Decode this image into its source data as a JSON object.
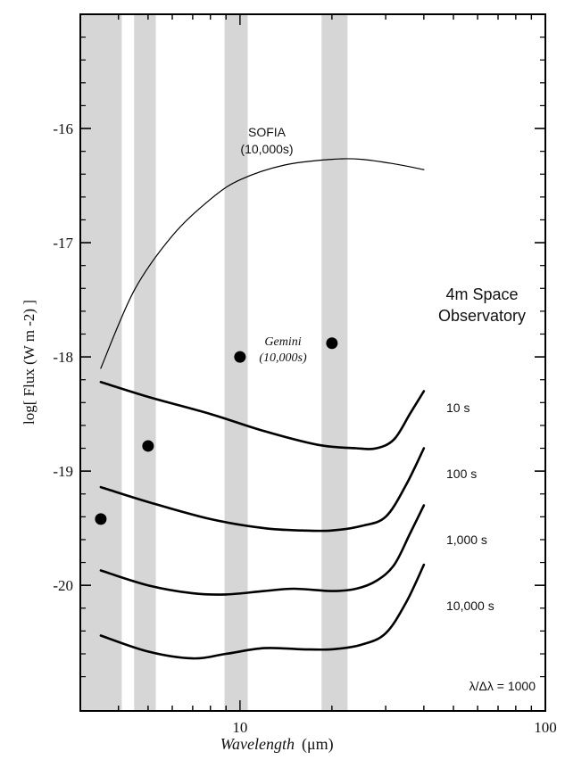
{
  "chart_data": {
    "type": "line",
    "title": "",
    "xlabel": "Wavelength",
    "xlabel_unit": "(μm)",
    "ylabel": "log[ Flux (W m -2) ]",
    "xscale": "log",
    "xlim": [
      3,
      100
    ],
    "ylim": [
      -21.1,
      -15
    ],
    "x_ticks": [
      10,
      100
    ],
    "y_ticks": [
      -16,
      -17,
      -18,
      -19,
      -20
    ],
    "shaded_bands": [
      [
        3.0,
        4.1
      ],
      [
        4.5,
        5.3
      ],
      [
        8.9,
        10.6
      ],
      [
        18.5,
        22.5
      ]
    ],
    "series": [
      {
        "name": "SOFIA",
        "label_lines": [
          "SOFIA",
          "(10,000s)"
        ],
        "style": "thin",
        "x": [
          3.5,
          4.5,
          6,
          8,
          10,
          14,
          20,
          25,
          32,
          40
        ],
        "y": [
          -18.1,
          -17.42,
          -16.94,
          -16.62,
          -16.45,
          -16.32,
          -16.27,
          -16.27,
          -16.31,
          -16.36
        ]
      },
      {
        "name": "10 s",
        "style": "thick",
        "x": [
          3.5,
          5,
          8,
          12,
          18,
          24,
          28,
          32,
          36,
          40
        ],
        "y": [
          -18.22,
          -18.35,
          -18.5,
          -18.65,
          -18.77,
          -18.8,
          -18.8,
          -18.72,
          -18.5,
          -18.3
        ]
      },
      {
        "name": "100 s",
        "style": "thick",
        "x": [
          3.5,
          5,
          8,
          12,
          16,
          20,
          25,
          30,
          35,
          40
        ],
        "y": [
          -19.14,
          -19.27,
          -19.42,
          -19.5,
          -19.52,
          -19.52,
          -19.48,
          -19.4,
          -19.12,
          -18.8
        ]
      },
      {
        "name": "1,000 s",
        "style": "thick",
        "x": [
          3.5,
          5,
          7,
          9,
          12,
          15,
          20,
          24,
          28,
          32,
          36,
          40
        ],
        "y": [
          -19.87,
          -20.0,
          -20.07,
          -20.08,
          -20.05,
          -20.03,
          -20.05,
          -20.03,
          -19.96,
          -19.82,
          -19.55,
          -19.3
        ]
      },
      {
        "name": "10,000 s",
        "style": "thick",
        "x": [
          3.5,
          5,
          7,
          9,
          12,
          16,
          20,
          25,
          30,
          35,
          40
        ],
        "y": [
          -20.44,
          -20.58,
          -20.64,
          -20.6,
          -20.55,
          -20.56,
          -20.56,
          -20.52,
          -20.42,
          -20.15,
          -19.82
        ]
      }
    ],
    "points": {
      "name": "Gemini",
      "label_lines": [
        "Gemini",
        "(10,000s)"
      ],
      "x": [
        3.5,
        5,
        10,
        20
      ],
      "y": [
        -19.42,
        -18.78,
        -18.0,
        -17.88
      ]
    },
    "annotations": {
      "observatory_lines": [
        "4m Space",
        "Observatory"
      ],
      "resolution": "λ/Δλ = 1000"
    }
  }
}
